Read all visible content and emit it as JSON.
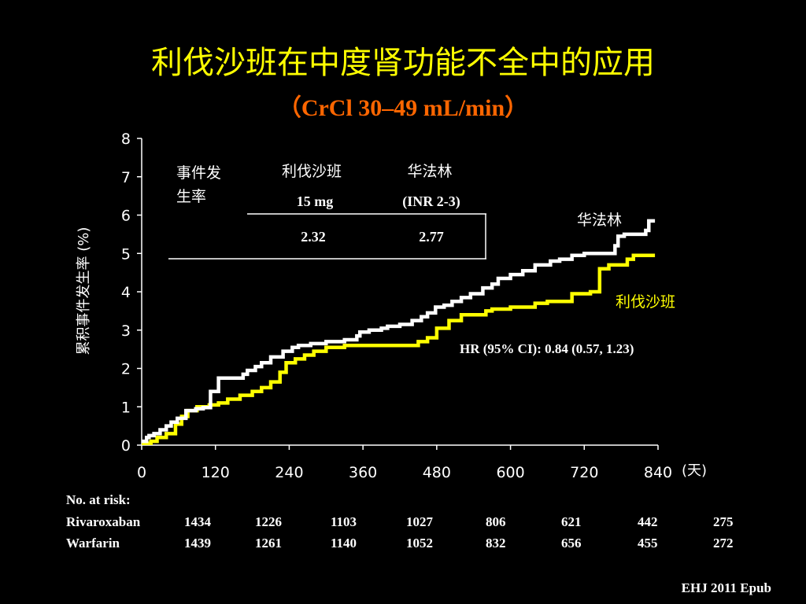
{
  "slide": {
    "title": "利伐沙班在中度肾功能不全中的应用",
    "subtitle": "（CrCl 30–49 mL/min）",
    "citation": "EHJ 2011 Epub"
  },
  "inset_table": {
    "row_label": "事件发生率",
    "row_label_line1": "事件发",
    "row_label_line2": "生率",
    "col1_name": "利伐沙班",
    "col1_dose": "15 mg",
    "col2_name": "华法林",
    "col2_dose": "(INR 2-3)",
    "col1_value": "2.32",
    "col2_value": "2.77"
  },
  "annotations": {
    "hr": "HR (95% CI): 0.84 (0.57, 1.23)",
    "x_unit": "(天)"
  },
  "risk_table": {
    "header": "No. at risk:",
    "rows": [
      {
        "label": "Rivaroxaban",
        "values": [
          "1434",
          "1226",
          "1103",
          "1027",
          "806",
          "621",
          "442",
          "275"
        ]
      },
      {
        "label": "Warfarin",
        "values": [
          "1439",
          "1261",
          "1140",
          "1052",
          "832",
          "656",
          "455",
          "272"
        ]
      }
    ]
  },
  "colors": {
    "title": "#ffff00",
    "subtitle": "#ff6600",
    "rivaroxaban": "#ffff00",
    "warfarin": "#ffffff",
    "background": "#000000"
  },
  "chart_data": {
    "type": "line",
    "xlabel": "",
    "ylabel": "累积事件发生率 (%)",
    "xlim": [
      0,
      840
    ],
    "ylim": [
      0,
      8
    ],
    "xticks": [
      0,
      120,
      240,
      360,
      480,
      600,
      720,
      840
    ],
    "yticks": [
      0,
      1,
      2,
      3,
      4,
      5,
      6,
      7,
      8
    ],
    "grid": false,
    "series": [
      {
        "name": "华法林",
        "step": true,
        "x": [
          0,
          8,
          12,
          20,
          30,
          40,
          48,
          58,
          72,
          88,
          100,
          112,
          125,
          135,
          148,
          165,
          172,
          185,
          195,
          210,
          230,
          245,
          255,
          275,
          300,
          330,
          350,
          355,
          370,
          390,
          400,
          420,
          440,
          455,
          465,
          478,
          492,
          505,
          520,
          535,
          555,
          570,
          580,
          600,
          620,
          640,
          665,
          680,
          700,
          720,
          750,
          770,
          775,
          785,
          790,
          800,
          810,
          820,
          825,
          835
        ],
        "y": [
          0.1,
          0.2,
          0.25,
          0.3,
          0.4,
          0.5,
          0.6,
          0.7,
          0.9,
          0.95,
          0.98,
          1.4,
          1.75,
          1.75,
          1.75,
          1.85,
          1.95,
          2.05,
          2.15,
          2.3,
          2.45,
          2.55,
          2.6,
          2.65,
          2.7,
          2.75,
          2.85,
          2.95,
          3.0,
          3.05,
          3.1,
          3.15,
          3.25,
          3.35,
          3.45,
          3.6,
          3.65,
          3.75,
          3.85,
          3.95,
          4.1,
          4.2,
          4.35,
          4.45,
          4.55,
          4.7,
          4.8,
          4.85,
          4.95,
          5.0,
          5.0,
          5.2,
          5.45,
          5.5,
          5.5,
          5.5,
          5.5,
          5.6,
          5.85,
          5.85
        ]
      },
      {
        "name": "利伐沙班",
        "step": true,
        "x": [
          0,
          15,
          25,
          40,
          55,
          65,
          75,
          90,
          100,
          110,
          125,
          140,
          160,
          180,
          195,
          210,
          225,
          235,
          250,
          265,
          280,
          300,
          330,
          350,
          370,
          390,
          410,
          430,
          450,
          465,
          480,
          500,
          520,
          560,
          570,
          600,
          640,
          660,
          690,
          700,
          730,
          745,
          760,
          775,
          790,
          800,
          835
        ],
        "y": [
          0.05,
          0.1,
          0.2,
          0.3,
          0.55,
          0.75,
          0.9,
          1.0,
          1.0,
          1.05,
          1.1,
          1.2,
          1.3,
          1.4,
          1.5,
          1.65,
          1.9,
          2.15,
          2.25,
          2.35,
          2.45,
          2.55,
          2.6,
          2.6,
          2.6,
          2.6,
          2.6,
          2.6,
          2.7,
          2.8,
          3.05,
          3.25,
          3.4,
          3.5,
          3.55,
          3.6,
          3.7,
          3.75,
          3.75,
          3.95,
          4.0,
          4.6,
          4.7,
          4.7,
          4.85,
          4.95,
          4.95
        ]
      }
    ]
  }
}
